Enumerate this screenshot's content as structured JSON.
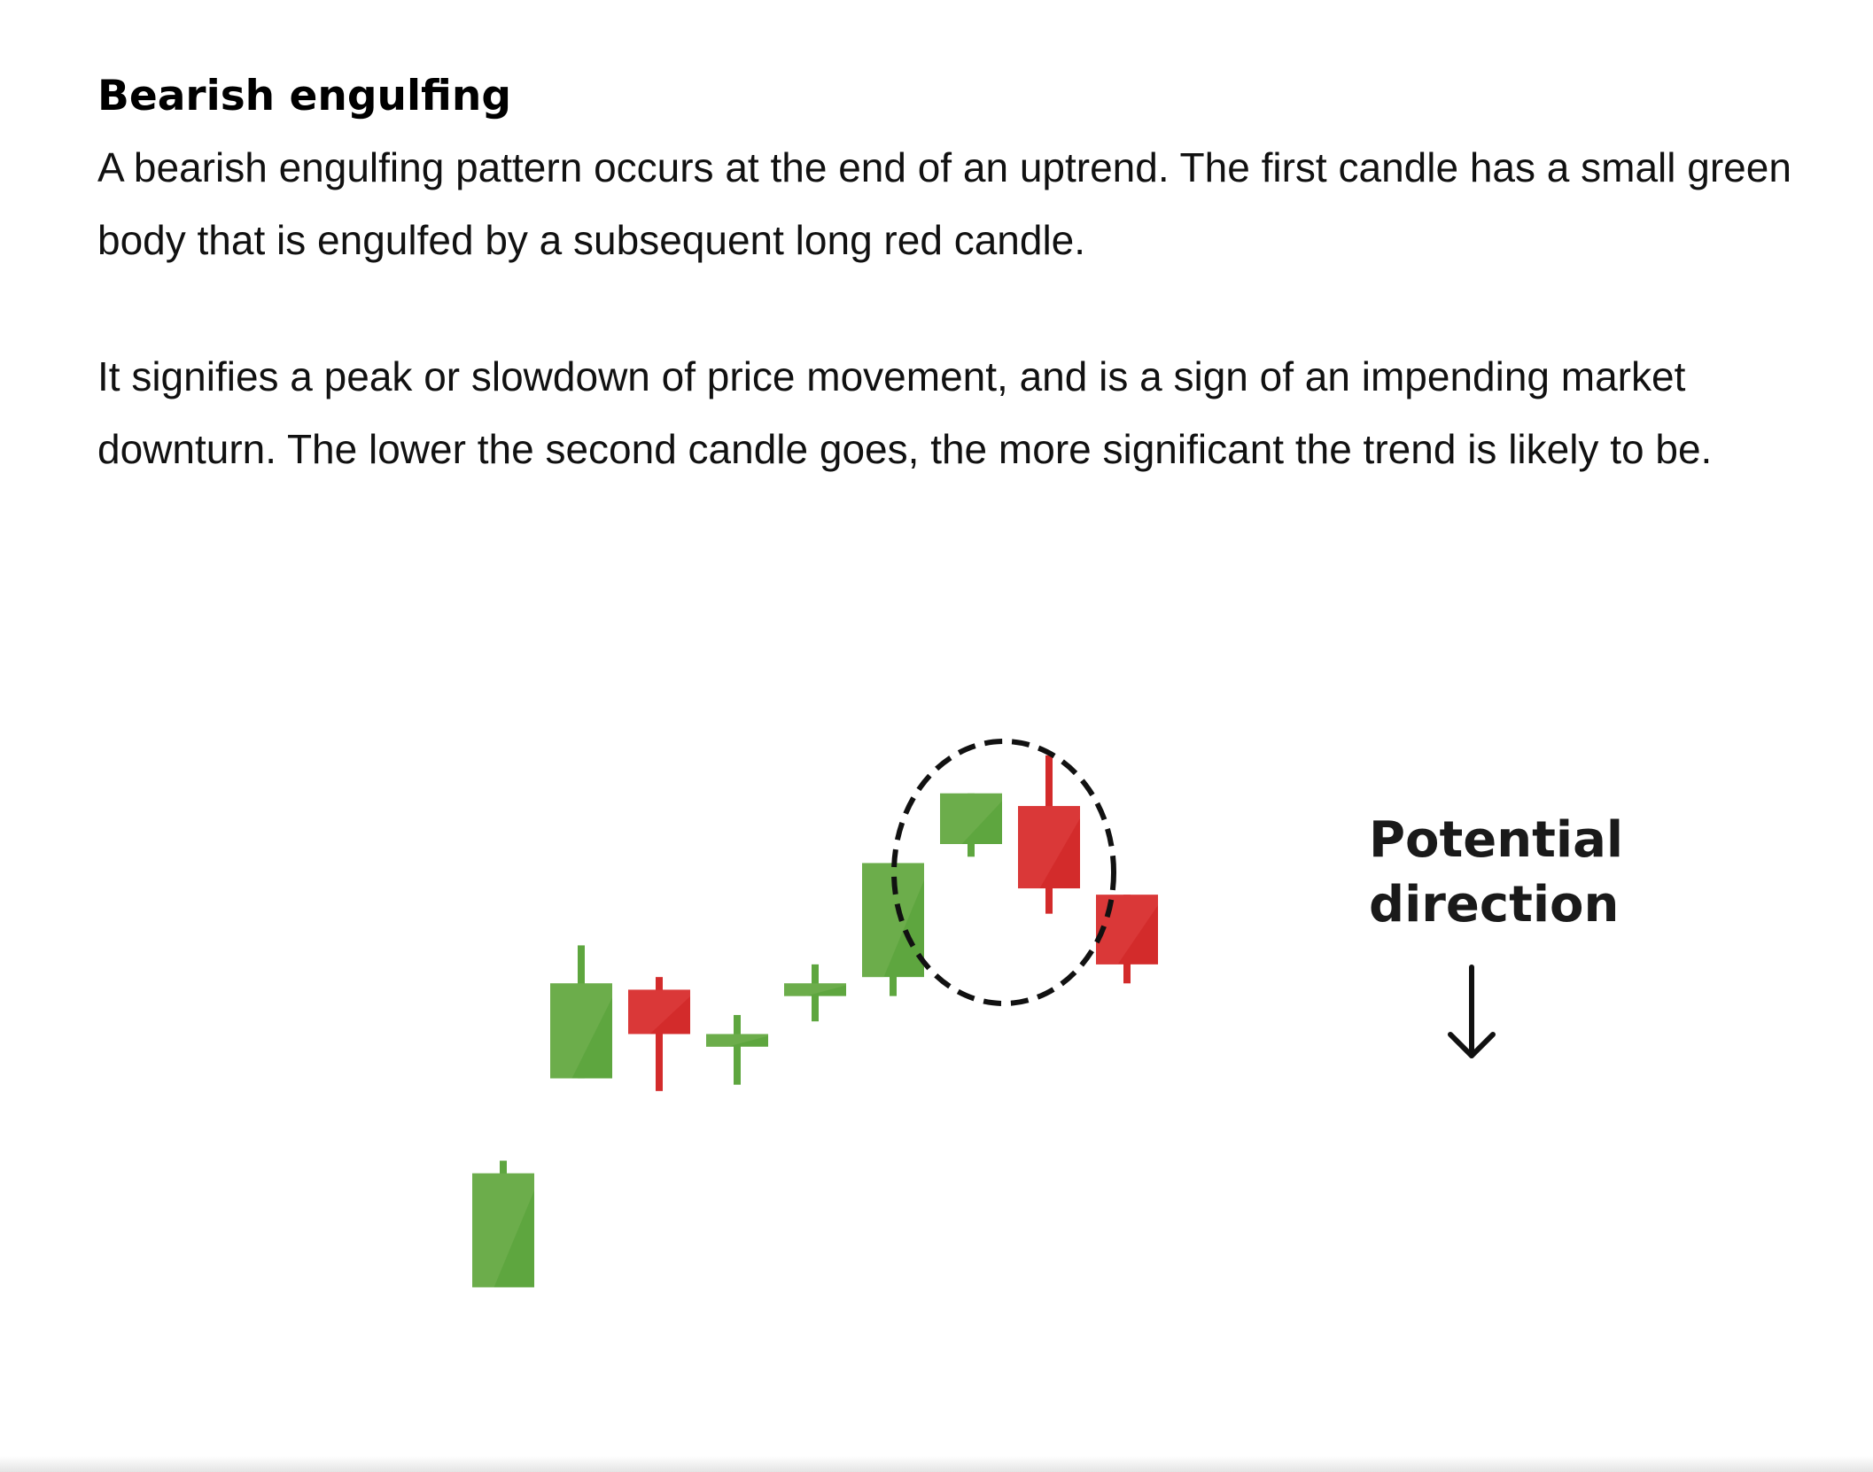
{
  "article": {
    "heading": "Bearish engulfing",
    "paragraphs": [
      "A bearish engulfing pattern occurs at the end of an uptrend. The first candle has a small green body that is engulfed by a subsequent long red candle.",
      "It signifies a peak or slowdown of price movement, and is a sign of an impending market downturn. The lower the second candle goes, the more significant the trend is likely to be."
    ]
  },
  "figure": {
    "direction_label_line1": "Potential",
    "direction_label_line2": "direction",
    "arrow_icon": "down-arrow-icon",
    "highlight": "dashed-circle-around-candles-7-8",
    "colors": {
      "bullish": "#5ea63f",
      "bullish_light": "#78b355",
      "bearish": "#d32b2b",
      "bearish_light": "#e04444",
      "dashed_circle": "#111111"
    }
  },
  "chart_data": {
    "type": "candlestick",
    "candles": [
      {
        "index": 1,
        "direction": "up",
        "open": 10,
        "close": 28,
        "high": 30,
        "low": 10
      },
      {
        "index": 2,
        "direction": "up",
        "open": 43,
        "close": 58,
        "high": 64,
        "low": 43
      },
      {
        "index": 3,
        "direction": "down",
        "open": 57,
        "close": 50,
        "high": 59,
        "low": 41
      },
      {
        "index": 4,
        "direction": "up",
        "open": 48,
        "close": 50,
        "high": 53,
        "low": 42
      },
      {
        "index": 5,
        "direction": "up",
        "open": 56,
        "close": 58,
        "high": 61,
        "low": 52
      },
      {
        "index": 6,
        "direction": "up",
        "open": 59,
        "close": 77,
        "high": 77,
        "low": 56
      },
      {
        "index": 7,
        "direction": "up",
        "open": 80,
        "close": 88,
        "high": 88,
        "low": 78
      },
      {
        "index": 8,
        "direction": "down",
        "open": 86,
        "close": 73,
        "high": 94,
        "low": 69
      },
      {
        "index": 9,
        "direction": "down",
        "open": 72,
        "close": 61,
        "high": 72,
        "low": 58
      }
    ],
    "pattern": "Bearish engulfing",
    "highlighted_candles": [
      7,
      8
    ],
    "annotation": "Potential direction",
    "grid": false,
    "legend": "none"
  }
}
